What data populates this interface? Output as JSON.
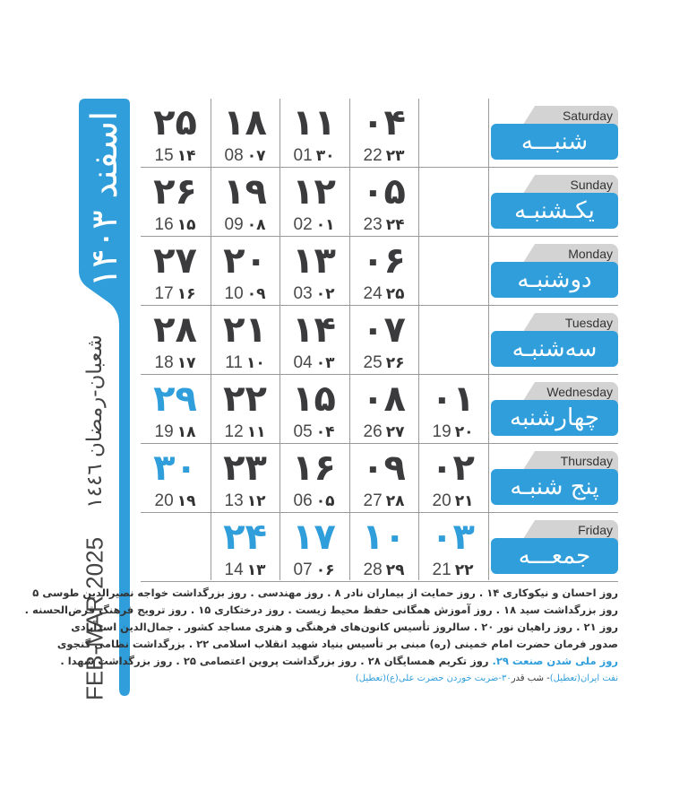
{
  "colors": {
    "accent": "#2f9edb",
    "text": "#3b3b3d",
    "tab": "#d3d3d3"
  },
  "side": {
    "month": "اسفند ۱۴۰۳",
    "hijri": "شعبان-رمضان ١٤٤٦",
    "gregorian": "FEB-MAR 2025"
  },
  "days": [
    {
      "en": "Saturday",
      "fa": "شنبـــه",
      "cells": [
        {
          "n": "۲۵",
          "g": "15",
          "h": "۱۴"
        },
        {
          "n": "۱۸",
          "g": "08",
          "h": "۰۷"
        },
        {
          "n": "۱۱",
          "g": "01",
          "h": "۳۰"
        },
        {
          "n": "۰۴",
          "g": "22",
          "h": "۲۳"
        },
        null
      ]
    },
    {
      "en": "Sunday",
      "fa": "یکـشنبـه",
      "cells": [
        {
          "n": "۲۶",
          "g": "16",
          "h": "۱۵"
        },
        {
          "n": "۱۹",
          "g": "09",
          "h": "۰۸"
        },
        {
          "n": "۱۲",
          "g": "02",
          "h": "۰۱"
        },
        {
          "n": "۰۵",
          "g": "23",
          "h": "۲۴"
        },
        null
      ]
    },
    {
      "en": "Monday",
      "fa": "دوشنبـه",
      "cells": [
        {
          "n": "۲۷",
          "g": "17",
          "h": "۱۶"
        },
        {
          "n": "۲۰",
          "g": "10",
          "h": "۰۹"
        },
        {
          "n": "۱۳",
          "g": "03",
          "h": "۰۲"
        },
        {
          "n": "۰۶",
          "g": "24",
          "h": "۲۵"
        },
        null
      ]
    },
    {
      "en": "Tuesday",
      "fa": "سه‌شنبـه",
      "cells": [
        {
          "n": "۲۸",
          "g": "18",
          "h": "۱۷"
        },
        {
          "n": "۲۱",
          "g": "11",
          "h": "۱۰"
        },
        {
          "n": "۱۴",
          "g": "04",
          "h": "۰۳"
        },
        {
          "n": "۰۷",
          "g": "25",
          "h": "۲۶"
        },
        null
      ]
    },
    {
      "en": "Wednesday",
      "fa": "چهارشنبه",
      "cells": [
        {
          "n": "۲۹",
          "g": "19",
          "h": "۱۸",
          "holiday": true
        },
        {
          "n": "۲۲",
          "g": "12",
          "h": "۱۱"
        },
        {
          "n": "۱۵",
          "g": "05",
          "h": "۰۴"
        },
        {
          "n": "۰۸",
          "g": "26",
          "h": "۲۷"
        },
        {
          "n": "۰۱",
          "g": "19",
          "h": "۲۰"
        }
      ]
    },
    {
      "en": "Thursday",
      "fa": "پنج شنبـه",
      "cells": [
        {
          "n": "۳۰",
          "g": "20",
          "h": "۱۹",
          "holiday": true
        },
        {
          "n": "۲۳",
          "g": "13",
          "h": "۱۲"
        },
        {
          "n": "۱۶",
          "g": "06",
          "h": "۰۵"
        },
        {
          "n": "۰۹",
          "g": "27",
          "h": "۲۸"
        },
        {
          "n": "۰۲",
          "g": "20",
          "h": "۲۱"
        }
      ]
    },
    {
      "en": "Friday",
      "fa": "جمعـــه",
      "cells": [
        null,
        {
          "n": "۲۴",
          "g": "14",
          "h": "۱۳",
          "holiday": true
        },
        {
          "n": "۱۷",
          "g": "07",
          "h": "۰۶",
          "holiday": true
        },
        {
          "n": "۱۰",
          "g": "28",
          "h": "۲۹",
          "holiday": true
        },
        {
          "n": "۰۳",
          "g": "21",
          "h": "۲۲",
          "holiday": true
        }
      ]
    }
  ],
  "notes": {
    "line1": "روز احسان و نیکوکاری ۱۴ . روز حمایت از بیماران نادر ۸ . روز مهندسی . روز بزرگداشت خواجه نصیرالدین طوسی ۵",
    "line2": "روز بزرگداشت سید ۱۸ . روز آموزش همگانی حفظ محیط زیست . روز درختکاری ۱۵ . روز ترویج فرهنگ قرض‌الحسنه .",
    "line3": "روز ۲۱ . روز راهیان نور ۲۰ . سالروز تأسیس کانون‌های فرهنگی و هنری مساجد کشور . جمال‌الدین اسدآبادی",
    "line4": "صدور فرمان حضرت امام خمینی (ره) مبنی بر تأسیس بنیاد شهید انقلاب اسلامی ۲۲ . بزرگداشت نظامی گنجوی",
    "line5_blue": "روز ملی شدن صنعت ۲۹.",
    "line5": "روز تکریم همسایگان ۲۸ . روز بزرگداشت پروین اعتصامی ۲۵ . روز بزرگداشت شهدا .",
    "line6_blue1": "نفت ایران(تعطیل)",
    "line6": "- شب قدر",
    "line6_blue2": "۳۰-ضربت خوردن حضرت علی(ع)(تعطیل)"
  }
}
